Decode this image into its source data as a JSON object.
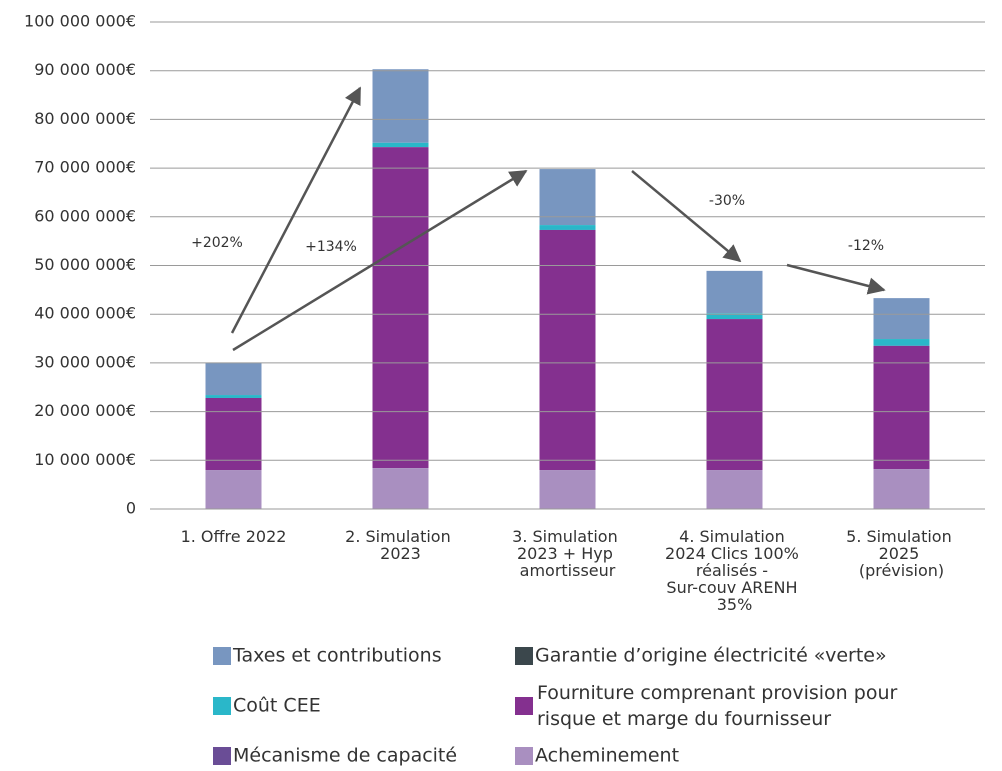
{
  "chart_data": {
    "type": "stacked_bar",
    "categories": [
      "1. Offre 2022",
      "2. Simulation 2023",
      "3. Simulation 2023 + Hyp amortisseur",
      "4. Simulation 2024  Clics 100% réalisés - Sur-couv ARENH 35%",
      "5. Simulation 2025 (prévision)"
    ],
    "series": [
      {
        "name": "Acheminement",
        "color": "#a98fc0",
        "values": [
          8000000,
          8400000,
          8000000,
          8000000,
          8200000
        ]
      },
      {
        "name": "Mécanisme de capacité",
        "color": "#6a4d96",
        "values": [
          0,
          0,
          0,
          0,
          0
        ]
      },
      {
        "name": "Fourniture comprenant provision pour risque et marge du fournisseur",
        "color": "#84308f",
        "values": [
          14800000,
          65900000,
          49300000,
          31000000,
          25300000
        ]
      },
      {
        "name": "Garantie d’origine électricité «verte»",
        "color": "#3b474c",
        "values": [
          0,
          0,
          0,
          0,
          0
        ]
      },
      {
        "name": "Coût CEE",
        "color": "#2ab7c9",
        "values": [
          600000,
          900000,
          1000000,
          1200000,
          1400000
        ]
      },
      {
        "name": "Taxes et contributions",
        "color": "#7896c0",
        "values": [
          6600000,
          15100000,
          11500000,
          8700000,
          8400000
        ]
      }
    ],
    "ylim": [
      0,
      100000000
    ],
    "yticks": [
      0,
      {
        "value": 10000000,
        "label": "10 000 000€"
      },
      {
        "value": 20000000,
        "label": "20 000 000€"
      },
      {
        "value": 30000000,
        "label": "30 000 000€"
      },
      {
        "value": 40000000,
        "label": "40 000 000€"
      },
      {
        "value": 50000000,
        "label": "50 000 000€"
      },
      {
        "value": 60000000,
        "label": "60 000 000€"
      },
      {
        "value": 70000000,
        "label": "70 000 000€"
      },
      {
        "value": 80000000,
        "label": "80 000 000€"
      },
      {
        "value": 90000000,
        "label": "90 000 000€"
      },
      {
        "value": 100000000,
        "label": "100 000 000€"
      }
    ],
    "grid": true,
    "annotations": [
      "+202%",
      "+134%",
      "-30%",
      "-12%"
    ]
  }
}
